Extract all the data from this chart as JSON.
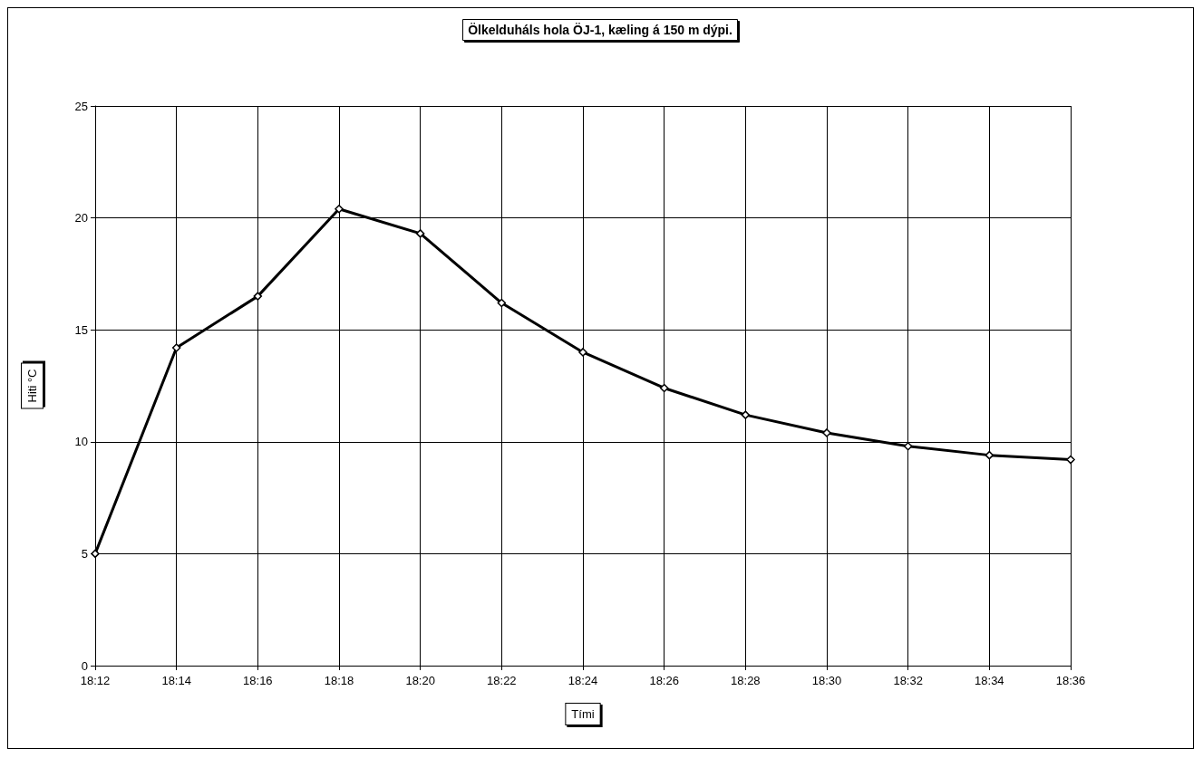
{
  "chart_data": {
    "type": "line",
    "title": "Ölkelduháls hola ÖJ-1, kæling á 150 m dýpi.",
    "xlabel": "Tími",
    "ylabel": "Hiti °C",
    "categories": [
      "18:12",
      null,
      "18:14",
      null,
      "18:16",
      null,
      "18:18",
      null,
      "18:20",
      null,
      "18:22",
      null,
      "18:24",
      null,
      "18:26",
      null,
      "18:28",
      null,
      "18:30",
      null,
      "18:32",
      null,
      "18:34",
      null,
      "18:36"
    ],
    "series": [
      {
        "color": "#000000",
        "values": [
          5.0,
          null,
          14.2,
          null,
          16.5,
          null,
          20.4,
          null,
          19.3,
          null,
          16.2,
          null,
          14.0,
          null,
          12.4,
          null,
          11.2,
          null,
          10.4,
          null,
          9.8,
          null,
          9.4,
          null,
          9.2
        ]
      }
    ],
    "ylim": [
      0,
      25
    ],
    "yticks": [
      0,
      5,
      10,
      15,
      20,
      25
    ],
    "grid": true,
    "marker": "diamond",
    "line_style": "solid"
  }
}
